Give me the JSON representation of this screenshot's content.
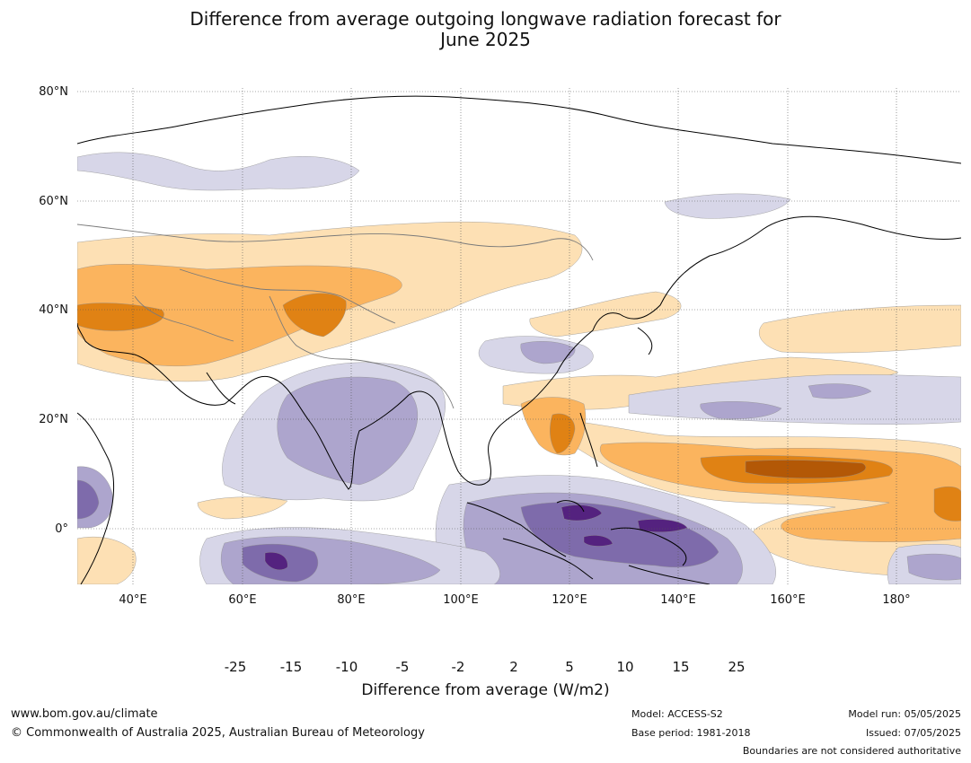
{
  "title": {
    "line1": "Difference from average outgoing longwave radiation forecast for",
    "line2": "June 2025"
  },
  "map": {
    "lat_labels": [
      "80°N",
      "60°N",
      "40°N",
      "20°N",
      "0°"
    ],
    "lon_labels": [
      "40°E",
      "60°E",
      "80°E",
      "100°E",
      "120°E",
      "140°E",
      "160°E",
      "180°"
    ],
    "lat_range": [
      -10,
      81
    ],
    "lon_range": [
      30,
      192
    ]
  },
  "colorbar": {
    "labels": [
      "-25",
      "-15",
      "-10",
      "-5",
      "-2",
      "2",
      "5",
      "10",
      "15",
      "25"
    ],
    "colors": [
      "#3b0f4f",
      "#54227f",
      "#7e6bab",
      "#ada5cd",
      "#d7d6e8",
      "#ffffff",
      "#fde0b4",
      "#fbb45e",
      "#e08214",
      "#b35806",
      "#7f3b08"
    ],
    "title": "Difference from average (W/m2)"
  },
  "footer": {
    "website": "www.bom.gov.au/climate",
    "copyright": "© Commonwealth of Australia 2025, Australian Bureau of Meteorology",
    "model": "Model: ACCESS-S2",
    "base_period": "Base period: 1981-2018",
    "model_run": "Model run: 05/05/2025",
    "issued": "Issued: 07/05/2025",
    "disclaimer": "Boundaries are not considered authoritative"
  }
}
